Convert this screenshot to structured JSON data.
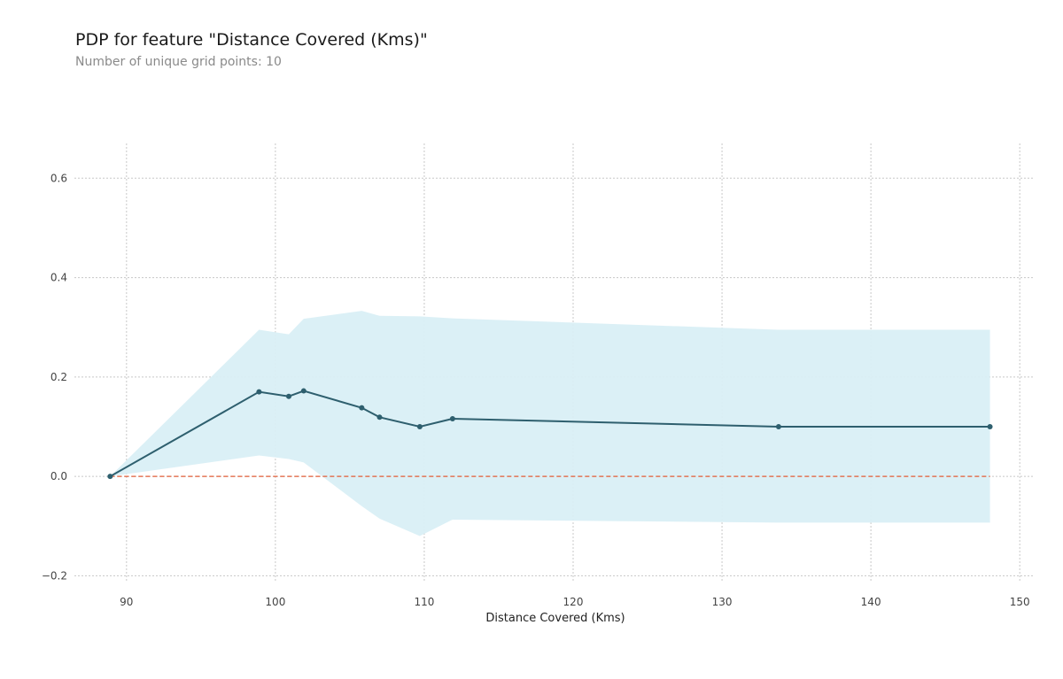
{
  "chart_data": {
    "type": "line",
    "title": "PDP for feature \"Distance Covered (Kms)\"",
    "subtitle": "Number of unique grid points: 10",
    "xlabel": "Distance Covered (Kms)",
    "ylabel": "",
    "xlim": [
      86.5,
      151
    ],
    "ylim": [
      -0.21,
      0.67
    ],
    "xticks": [
      90,
      100,
      110,
      120,
      130,
      140,
      150
    ],
    "xtick_labels": [
      "90",
      "100",
      "110",
      "120",
      "130",
      "140",
      "150"
    ],
    "yticks": [
      -0.2,
      0.0,
      0.2,
      0.4,
      0.6
    ],
    "ytick_labels": [
      "−0.2",
      "0.0",
      "0.2",
      "0.4",
      "0.6"
    ],
    "grid": true,
    "series": [
      {
        "name": "PDP",
        "x": [
          88.9,
          98.9,
          100.9,
          101.9,
          105.8,
          107.0,
          109.7,
          111.9,
          133.8,
          148.0
        ],
        "values": [
          0.0,
          0.17,
          0.161,
          0.172,
          0.138,
          0.119,
          0.1,
          0.116,
          0.1,
          0.1
        ],
        "upper": [
          0.0,
          0.295,
          0.286,
          0.317,
          0.333,
          0.323,
          0.322,
          0.318,
          0.295,
          0.295
        ],
        "lower": [
          0.0,
          0.042,
          0.035,
          0.028,
          -0.06,
          -0.085,
          -0.12,
          -0.087,
          -0.093,
          -0.093
        ],
        "color": "#2e5f6e",
        "band_color": "#d9eff5"
      }
    ],
    "reference_line": {
      "y": 0.0,
      "color": "#e35c35",
      "style": "dashed"
    }
  }
}
